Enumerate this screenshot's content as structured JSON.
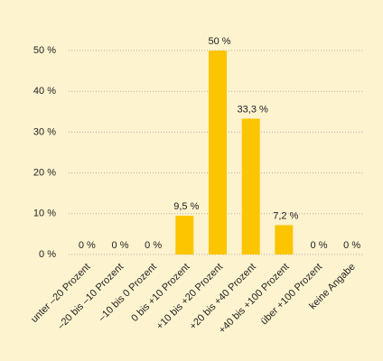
{
  "chart_data": {
    "type": "bar",
    "categories": [
      "unter –20 Prozent",
      "–20 bis –10 Prozent",
      "–10 bis 0 Prozent",
      "0 bis +10 Prozent",
      "+10 bis +20 Prozent",
      "+20 bis +40 Prozent",
      "+40 bis +100 Prozent",
      "über +100 Prozent",
      "keine Angabe"
    ],
    "values": [
      0,
      0,
      0,
      9.5,
      50,
      33.3,
      7.2,
      0,
      0
    ],
    "value_labels": [
      "0 %",
      "0 %",
      "0 %",
      "9,5 %",
      "50 %",
      "33,3 %",
      "7,2 %",
      "0 %",
      "0 %"
    ],
    "color": "#fcc500",
    "ylim": [
      0,
      50
    ],
    "yticks": [
      {
        "value": 0,
        "label": "0 %"
      },
      {
        "value": 10,
        "label": "10 %"
      },
      {
        "value": 20,
        "label": "20 %"
      },
      {
        "value": 30,
        "label": "30 %"
      },
      {
        "value": 40,
        "label": "40 %"
      },
      {
        "value": 50,
        "label": "50 %"
      }
    ],
    "grid": true
  }
}
